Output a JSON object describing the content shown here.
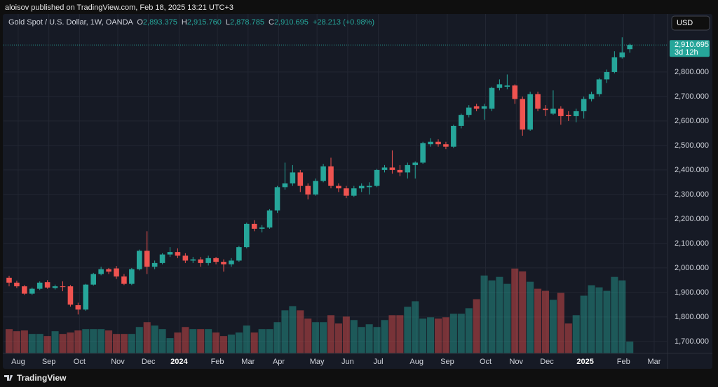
{
  "header": {
    "byline": "aloisov published on TradingView.com, Feb 18, 2025 13:21 UTC+3"
  },
  "footer": {
    "brand": "TradingView"
  },
  "currency_button": "USD",
  "chart_data": {
    "type": "candlestick",
    "legend": {
      "symbol": "Gold Spot / U.S. Dollar, 1W, OANDA",
      "open_key": "O",
      "open": "2,893.375",
      "high_key": "H",
      "high": "2,915.760",
      "low_key": "L",
      "low": "2,878.785",
      "close_key": "C",
      "close": "2,910.695",
      "change": "+28.213 (+0.98%)"
    },
    "last_price_label": "2,910.695",
    "countdown": "3d 12h",
    "categories": [
      null,
      "Aug",
      null,
      null,
      null,
      "Sep",
      null,
      null,
      null,
      "Oct",
      null,
      null,
      null,
      null,
      "Nov",
      null,
      null,
      null,
      "Dec",
      null,
      null,
      null,
      "2024",
      null,
      null,
      null,
      null,
      "Feb",
      null,
      null,
      null,
      "Mar",
      null,
      null,
      null,
      "Apr",
      null,
      null,
      null,
      null,
      "May",
      null,
      null,
      null,
      "Jun",
      null,
      null,
      null,
      "Jul",
      null,
      null,
      null,
      null,
      "Aug",
      null,
      null,
      null,
      "Sep",
      null,
      null,
      null,
      null,
      "Oct",
      null,
      null,
      null,
      "Nov",
      null,
      null,
      null,
      "Dec",
      null,
      null,
      null,
      null,
      "2025",
      null,
      null,
      null,
      null,
      "Feb",
      null,
      null,
      null,
      "Mar"
    ],
    "open": [
      1960,
      1940,
      1925,
      1895,
      1915,
      1942,
      1918,
      1925,
      1925,
      1848,
      1830,
      1932,
      1975,
      1995,
      1998,
      1965,
      1935,
      1995,
      2070,
      2005,
      2020,
      2055,
      2065,
      2050,
      2030,
      2035,
      2020,
      2040,
      2025,
      2015,
      2030,
      2085,
      2180,
      2160,
      2165,
      2235,
      2330,
      2345,
      2390,
      2335,
      2300,
      2355,
      2415,
      2335,
      2325,
      2295,
      2325,
      2330,
      2335,
      2400,
      2410,
      2400,
      2390,
      2420,
      2430,
      2505,
      2515,
      2505,
      2495,
      2580,
      2625,
      2660,
      2650,
      2650,
      2735,
      2740,
      2745,
      2690,
      2565,
      2710,
      2650,
      2630,
      2650,
      2625,
      2620,
      2640,
      2690,
      2710,
      2770,
      2800,
      2860,
      2893.375,
      null,
      null,
      null
    ],
    "high": [
      1968,
      1948,
      1930,
      1920,
      1945,
      1950,
      1932,
      1945,
      1930,
      1858,
      1935,
      1980,
      2005,
      2000,
      2008,
      1975,
      2000,
      2075,
      2150,
      2030,
      2060,
      2085,
      2080,
      2060,
      2045,
      2045,
      2050,
      2045,
      2035,
      2040,
      2090,
      2185,
      2195,
      2175,
      2240,
      2335,
      2430,
      2420,
      2400,
      2345,
      2365,
      2425,
      2450,
      2345,
      2335,
      2335,
      2345,
      2350,
      2405,
      2420,
      2480,
      2420,
      2430,
      2435,
      2515,
      2530,
      2525,
      2515,
      2585,
      2630,
      2665,
      2670,
      2670,
      2740,
      2770,
      2790,
      2750,
      2700,
      2720,
      2720,
      2665,
      2725,
      2660,
      2640,
      2650,
      2700,
      2720,
      2775,
      2810,
      2885,
      2942,
      2915.76,
      null,
      null,
      null
    ],
    "low": [
      1925,
      1918,
      1890,
      1890,
      1910,
      1915,
      1912,
      1905,
      1842,
      1810,
      1825,
      1928,
      1970,
      1975,
      1955,
      1930,
      1930,
      1990,
      1975,
      1995,
      2015,
      2045,
      2040,
      2020,
      2020,
      2005,
      2010,
      2015,
      1985,
      2005,
      2025,
      2080,
      2150,
      2145,
      2160,
      2225,
      2320,
      2335,
      2310,
      2280,
      2295,
      2350,
      2325,
      2310,
      2285,
      2290,
      2310,
      2300,
      2330,
      2390,
      2385,
      2375,
      2365,
      2365,
      2425,
      2495,
      2495,
      2485,
      2490,
      2570,
      2615,
      2640,
      2605,
      2640,
      2725,
      2730,
      2670,
      2540,
      2560,
      2640,
      2620,
      2625,
      2585,
      2600,
      2595,
      2610,
      2680,
      2700,
      2755,
      2795,
      2855,
      2878.785,
      null,
      null,
      null
    ],
    "close": [
      1940,
      1925,
      1895,
      1915,
      1940,
      1920,
      1925,
      1922,
      1850,
      1830,
      1932,
      1975,
      1995,
      1985,
      1965,
      1935,
      1995,
      2070,
      2005,
      2020,
      2055,
      2065,
      2050,
      2030,
      2035,
      2020,
      2040,
      2025,
      2015,
      2030,
      2085,
      2180,
      2160,
      2165,
      2235,
      2330,
      2345,
      2390,
      2335,
      2300,
      2355,
      2415,
      2335,
      2325,
      2295,
      2325,
      2335,
      2335,
      2400,
      2410,
      2400,
      2390,
      2420,
      2430,
      2510,
      2515,
      2505,
      2495,
      2580,
      2625,
      2655,
      2650,
      2660,
      2735,
      2750,
      2745,
      2690,
      2565,
      2710,
      2650,
      2645,
      2650,
      2620,
      2620,
      2640,
      2690,
      2710,
      2770,
      2800,
      2860,
      2880,
      2910.695,
      null,
      null,
      null
    ],
    "volume": [
      35,
      32,
      33,
      28,
      28,
      25,
      32,
      28,
      30,
      33,
      35,
      35,
      35,
      33,
      28,
      28,
      28,
      38,
      45,
      40,
      35,
      22,
      30,
      38,
      35,
      35,
      35,
      30,
      25,
      27,
      30,
      40,
      30,
      35,
      35,
      45,
      62,
      68,
      62,
      50,
      45,
      45,
      55,
      43,
      53,
      48,
      38,
      42,
      38,
      48,
      55,
      55,
      67,
      75,
      50,
      52,
      50,
      52,
      57,
      57,
      65,
      78,
      112,
      105,
      110,
      100,
      122,
      118,
      103,
      93,
      90,
      77,
      87,
      43,
      55,
      83,
      98,
      95,
      90,
      110,
      105,
      17,
      null,
      null,
      null
    ],
    "up_color": "#26a69a",
    "down_color": "#ef5350",
    "ylim": [
      1651,
      3037
    ],
    "yticks": [
      {
        "value": 1700,
        "label": "1,700.000"
      },
      {
        "value": 1800,
        "label": "1,800.000"
      },
      {
        "value": 1900,
        "label": "1,900.000"
      },
      {
        "value": 2000,
        "label": "2,000.000"
      },
      {
        "value": 2100,
        "label": "2,100.000"
      },
      {
        "value": 2200,
        "label": "2,200.000"
      },
      {
        "value": 2300,
        "label": "2,300.000"
      },
      {
        "value": 2400,
        "label": "2,400.000"
      },
      {
        "value": 2500,
        "label": "2,500.000"
      },
      {
        "value": 2600,
        "label": "2,600.000"
      },
      {
        "value": 2700,
        "label": "2,700.000"
      },
      {
        "value": 2800,
        "label": "2,800.000"
      }
    ],
    "grid": true
  }
}
